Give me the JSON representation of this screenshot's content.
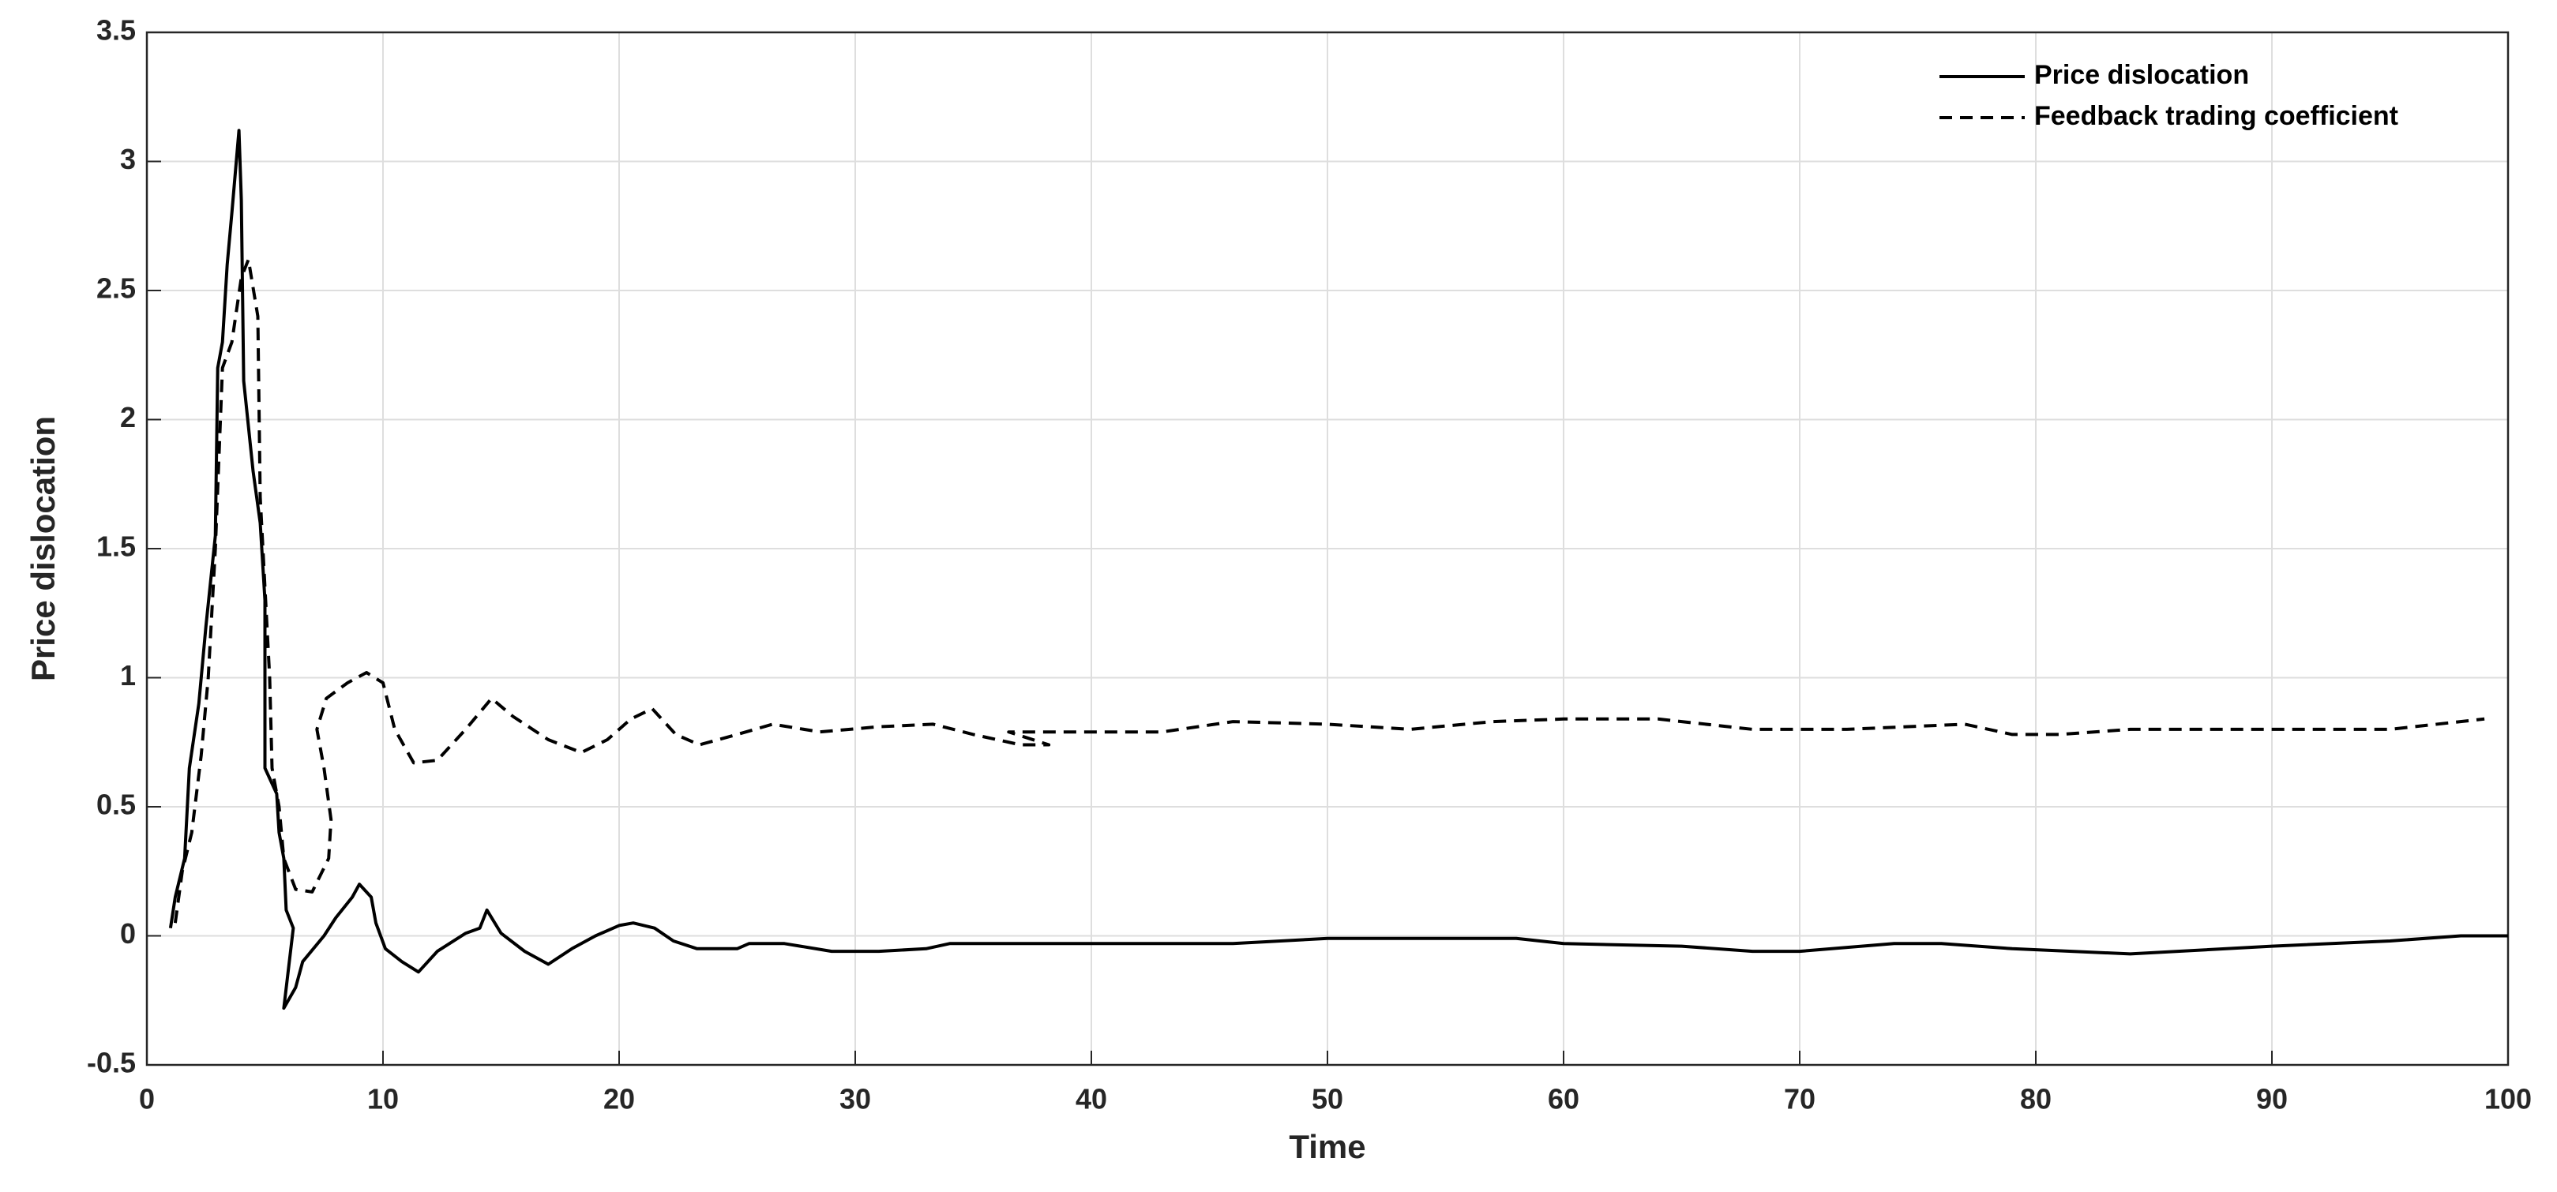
{
  "chart_data": {
    "type": "line",
    "xlabel": "Time",
    "ylabel": "Price dislocation",
    "xlim": [
      0,
      100
    ],
    "ylim": [
      -0.5,
      3.5
    ],
    "xticks": [
      0,
      10,
      20,
      30,
      40,
      50,
      60,
      70,
      80,
      90,
      100
    ],
    "yticks": [
      -0.5,
      0,
      0.5,
      1,
      1.5,
      2,
      2.5,
      3,
      3.5
    ],
    "grid": true,
    "legend": "upper right",
    "series": [
      {
        "name": "Price dislocation",
        "color": "#000000",
        "dash": "solid",
        "x": [
          1,
          1.2,
          1.6,
          1.8,
          2.2,
          2.5,
          2.9,
          3.0,
          3.2,
          3.4,
          3.6,
          3.9,
          4.0,
          4.1,
          4.5,
          4.8,
          5.0,
          5.0,
          5.5,
          5.6,
          5.8,
          5.9,
          6.2,
          5.8,
          6.3,
          6.6,
          7.5,
          8,
          8.7,
          9.0,
          9.5,
          9.7,
          10.1,
          10.8,
          11.5,
          12.3,
          13.5,
          14.1,
          14.4,
          15,
          16,
          17,
          18,
          19,
          20,
          20.6,
          21.5,
          22.3,
          23.3,
          25,
          25.5,
          27,
          29,
          31,
          33,
          34,
          40,
          46,
          50,
          58,
          60,
          65,
          68,
          70,
          74,
          76,
          79,
          84,
          90,
          95,
          98,
          100
        ],
        "values": [
          0.03,
          0.15,
          0.3,
          0.65,
          0.9,
          1.2,
          1.55,
          2.2,
          2.3,
          2.6,
          2.8,
          3.12,
          2.85,
          2.15,
          1.8,
          1.6,
          1.3,
          0.65,
          0.55,
          0.4,
          0.3,
          0.1,
          0.03,
          -0.28,
          -0.2,
          -0.1,
          0,
          0.07,
          0.15,
          0.2,
          0.15,
          0.05,
          -0.05,
          -0.1,
          -0.14,
          -0.06,
          0.01,
          0.03,
          0.1,
          0.01,
          -0.06,
          -0.11,
          -0.05,
          0,
          0.04,
          0.05,
          0.03,
          -0.02,
          -0.05,
          -0.05,
          -0.03,
          -0.03,
          -0.06,
          -0.06,
          -0.05,
          -0.03,
          -0.03,
          -0.03,
          -0.01,
          -0.01,
          -0.03,
          -0.04,
          -0.06,
          -0.06,
          -0.03,
          -0.03,
          -0.05,
          -0.07,
          -0.04,
          -0.02,
          0,
          0
        ]
      },
      {
        "name": "Feedback trading coefficient",
        "color": "#000000",
        "dash": "dashed",
        "x": [
          1.2,
          1.5,
          1.9,
          2.3,
          2.6,
          2.9,
          3.2,
          3.6,
          4.0,
          4.3,
          4.7,
          4.8,
          5.2,
          5.3,
          5.6,
          5.8,
          6.3,
          7.0,
          7.7,
          7.8,
          7.5,
          7.2,
          7.6,
          8.5,
          9.3,
          10,
          10.5,
          11.3,
          12.3,
          13.5,
          14.6,
          15.5,
          17,
          18.4,
          19.5,
          20.5,
          21.4,
          22.4,
          23.4,
          25,
          26.5,
          28.5,
          31,
          33.3,
          35,
          37,
          38.2,
          36.5,
          40,
          43,
          46,
          50,
          53.5,
          57,
          60,
          64,
          68,
          72,
          77,
          79,
          81,
          84,
          90,
          95,
          99
        ],
        "values": [
          0.05,
          0.25,
          0.4,
          0.7,
          1.0,
          1.5,
          2.2,
          2.3,
          2.55,
          2.62,
          2.4,
          1.7,
          1.0,
          0.65,
          0.5,
          0.3,
          0.18,
          0.17,
          0.3,
          0.45,
          0.65,
          0.8,
          0.92,
          0.98,
          1.02,
          0.98,
          0.8,
          0.67,
          0.68,
          0.8,
          0.92,
          0.85,
          0.76,
          0.71,
          0.76,
          0.84,
          0.88,
          0.78,
          0.74,
          0.78,
          0.82,
          0.79,
          0.81,
          0.82,
          0.78,
          0.74,
          0.74,
          0.79,
          0.79,
          0.79,
          0.83,
          0.82,
          0.8,
          0.83,
          0.84,
          0.84,
          0.8,
          0.8,
          0.82,
          0.78,
          0.78,
          0.8,
          0.8,
          0.8,
          0.84
        ]
      }
    ]
  }
}
